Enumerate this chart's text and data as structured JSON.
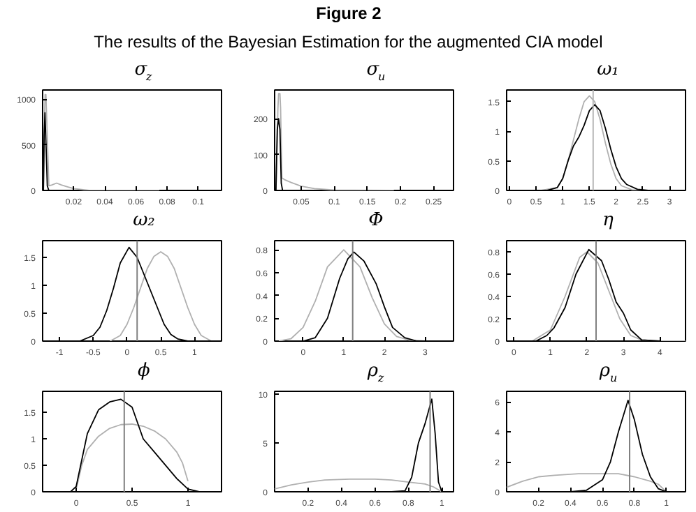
{
  "chart_data": [
    {
      "type": "other",
      "title": "Figure 2",
      "subtitle": "The results of the Bayesian Estimation for the augmented CIA model"
    },
    {
      "type": "line",
      "title": "σ$_{z}$",
      "xlim": [
        0,
        0.115
      ],
      "ylim": [
        0,
        1100
      ],
      "xticks": [
        0.02,
        0.04,
        0.06,
        0.08,
        0.1
      ],
      "yticks": [
        0,
        500,
        1000
      ],
      "grid": false,
      "series": [
        {
          "color": "#b0b0b0",
          "x": [
            0.0005,
            0.0012,
            0.0016,
            0.0021,
            0.0026,
            0.004,
            0.006,
            0.009,
            0.012,
            0.016,
            0.02,
            0.025,
            0.03,
            0.04,
            0.075
          ],
          "values": [
            0,
            800,
            1050,
            1050,
            800,
            50,
            60,
            80,
            60,
            40,
            20,
            10,
            0,
            0,
            0
          ]
        },
        {
          "color": "#000000",
          "x": [
            0.0005,
            0.001,
            0.0015,
            0.002,
            0.003,
            0.004,
            0.01
          ],
          "values": [
            0,
            600,
            850,
            600,
            50,
            0,
            0
          ]
        }
      ]
    },
    {
      "type": "line",
      "title": "σ$_{u}$",
      "xlim": [
        0.01,
        0.28
      ],
      "ylim": [
        0,
        280
      ],
      "xticks": [
        0.05,
        0.1,
        0.15,
        0.2,
        0.25
      ],
      "yticks": [
        0,
        100,
        200
      ],
      "grid": false,
      "series": [
        {
          "color": "#b0b0b0",
          "x": [
            0.012,
            0.015,
            0.016,
            0.018,
            0.019,
            0.021,
            0.025,
            0.035,
            0.05,
            0.07,
            0.1,
            0.19
          ],
          "values": [
            0,
            230,
            270,
            270,
            230,
            35,
            30,
            22,
            12,
            5,
            1,
            0
          ]
        },
        {
          "color": "#000000",
          "x": [
            0.012,
            0.014,
            0.016,
            0.018,
            0.02,
            0.022,
            0.03
          ],
          "values": [
            0,
            170,
            200,
            170,
            20,
            0,
            0
          ]
        }
      ]
    },
    {
      "type": "line",
      "title": "ω₁",
      "xlim": [
        -0.05,
        3.3
      ],
      "ylim": [
        0,
        1.7
      ],
      "xticks": [
        0,
        0.5,
        1,
        1.5,
        2,
        2.5,
        3
      ],
      "yticks": [
        0,
        0.5,
        1,
        1.5
      ],
      "grid": false,
      "ref_lines": [
        {
          "axis": "x",
          "value": 1.57,
          "color": "#b8b8b8"
        }
      ],
      "series": [
        {
          "color": "#b0b0b0",
          "x": [
            0,
            0.6,
            0.9,
            1.0,
            1.1,
            1.2,
            1.3,
            1.4,
            1.5,
            1.6,
            1.7,
            1.8,
            1.9,
            2.0,
            2.1,
            2.3,
            2.5,
            3.3
          ],
          "values": [
            0,
            0,
            0.05,
            0.2,
            0.5,
            0.85,
            1.2,
            1.5,
            1.6,
            1.5,
            1.2,
            0.8,
            0.45,
            0.2,
            0.08,
            0.01,
            0,
            0
          ]
        },
        {
          "color": "#000000",
          "x": [
            0,
            0.7,
            0.9,
            1.0,
            1.1,
            1.2,
            1.3,
            1.4,
            1.5,
            1.6,
            1.7,
            1.8,
            1.9,
            2.0,
            2.1,
            2.2,
            2.4,
            2.6,
            3.3
          ],
          "values": [
            0,
            0,
            0.05,
            0.2,
            0.5,
            0.75,
            0.9,
            1.1,
            1.35,
            1.45,
            1.35,
            1.05,
            0.7,
            0.4,
            0.2,
            0.1,
            0.02,
            0,
            0
          ]
        }
      ]
    },
    {
      "type": "line",
      "title": "ω₂",
      "xlim": [
        -1.25,
        1.4
      ],
      "ylim": [
        0,
        1.8
      ],
      "xticks": [
        -1,
        -0.5,
        0,
        0.5,
        1
      ],
      "yticks": [
        0,
        0.5,
        1,
        1.5
      ],
      "grid": false,
      "ref_lines": [
        {
          "axis": "x",
          "value": 0.15,
          "color": "#808080"
        }
      ],
      "series": [
        {
          "color": "#b0b0b0",
          "x": [
            -0.25,
            -0.1,
            0,
            0.1,
            0.2,
            0.3,
            0.4,
            0.5,
            0.6,
            0.7,
            0.8,
            0.9,
            1.0,
            1.1,
            1.25
          ],
          "values": [
            0,
            0.1,
            0.3,
            0.6,
            0.95,
            1.3,
            1.52,
            1.6,
            1.52,
            1.3,
            0.95,
            0.6,
            0.3,
            0.1,
            0
          ]
        },
        {
          "color": "#000000",
          "x": [
            -1.25,
            -0.7,
            -0.5,
            -0.4,
            -0.3,
            -0.2,
            -0.1,
            0.03,
            0.15,
            0.25,
            0.35,
            0.45,
            0.55,
            0.65,
            0.75,
            0.9,
            1.4
          ],
          "values": [
            0,
            0,
            0.1,
            0.25,
            0.55,
            0.95,
            1.4,
            1.68,
            1.5,
            1.2,
            0.9,
            0.6,
            0.3,
            0.12,
            0.04,
            0,
            0
          ]
        }
      ]
    },
    {
      "type": "line",
      "title": "Φ",
      "xlim": [
        -0.7,
        3.7
      ],
      "ylim": [
        0,
        0.88
      ],
      "xticks": [
        0,
        1,
        2,
        3
      ],
      "yticks": [
        0,
        0.2,
        0.4,
        0.6,
        0.8
      ],
      "grid": false,
      "ref_lines": [
        {
          "axis": "x",
          "value": 1.22,
          "color": "#808080"
        }
      ],
      "series": [
        {
          "color": "#b0b0b0",
          "x": [
            -0.6,
            -0.3,
            0,
            0.3,
            0.6,
            1.0,
            1.4,
            1.7,
            2.0,
            2.3,
            2.6,
            3.0
          ],
          "values": [
            0,
            0.02,
            0.12,
            0.35,
            0.65,
            0.8,
            0.65,
            0.38,
            0.15,
            0.04,
            0.01,
            0
          ]
        },
        {
          "color": "#000000",
          "x": [
            0,
            0.3,
            0.6,
            0.9,
            1.1,
            1.25,
            1.5,
            1.8,
            2.0,
            2.2,
            2.5,
            2.8,
            3.5
          ],
          "values": [
            0,
            0.03,
            0.2,
            0.55,
            0.72,
            0.78,
            0.7,
            0.5,
            0.3,
            0.12,
            0.03,
            0,
            0
          ]
        }
      ]
    },
    {
      "type": "line",
      "title": "η",
      "xlim": [
        -0.2,
        4.7
      ],
      "ylim": [
        0,
        0.9
      ],
      "xticks": [
        0,
        1,
        2,
        3,
        4
      ],
      "yticks": [
        0,
        0.2,
        0.4,
        0.6,
        0.8
      ],
      "grid": false,
      "ref_lines": [
        {
          "axis": "x",
          "value": 2.25,
          "color": "#808080"
        }
      ],
      "series": [
        {
          "color": "#b0b0b0",
          "x": [
            0,
            0.5,
            1,
            1.4,
            1.8,
            2.0,
            2.3,
            2.6,
            2.9,
            3.2,
            3.5,
            4,
            4.7
          ],
          "values": [
            0,
            0,
            0.1,
            0.4,
            0.75,
            0.8,
            0.7,
            0.45,
            0.2,
            0.05,
            0.01,
            0,
            0
          ]
        },
        {
          "color": "#000000",
          "x": [
            0,
            0.6,
            0.9,
            1.1,
            1.4,
            1.7,
            2.05,
            2.4,
            2.6,
            2.8,
            3.0,
            3.2,
            3.5,
            4
          ],
          "values": [
            0,
            0,
            0.05,
            0.12,
            0.3,
            0.6,
            0.82,
            0.72,
            0.55,
            0.35,
            0.25,
            0.1,
            0.01,
            0
          ]
        }
      ]
    },
    {
      "type": "line",
      "title": "ϕ",
      "xlim": [
        -0.3,
        1.3
      ],
      "ylim": [
        0,
        1.9
      ],
      "xticks": [
        0,
        0.5,
        1
      ],
      "yticks": [
        0,
        0.5,
        1,
        1.5
      ],
      "grid": false,
      "ref_lines": [
        {
          "axis": "x",
          "value": 0.43,
          "color": "#808080"
        }
      ],
      "series": [
        {
          "color": "#b0b0b0",
          "x": [
            0,
            0.05,
            0.1,
            0.2,
            0.3,
            0.4,
            0.5,
            0.6,
            0.7,
            0.8,
            0.9,
            0.95,
            1.0
          ],
          "values": [
            0.05,
            0.5,
            0.8,
            1.05,
            1.2,
            1.27,
            1.28,
            1.24,
            1.15,
            1.0,
            0.75,
            0.55,
            0.2
          ]
        },
        {
          "color": "#000000",
          "x": [
            -0.3,
            -0.05,
            0,
            0.05,
            0.1,
            0.2,
            0.3,
            0.4,
            0.5,
            0.55,
            0.6,
            0.7,
            0.8,
            0.9,
            1.0,
            1.1,
            1.3
          ],
          "values": [
            0,
            0,
            0.1,
            0.6,
            1.1,
            1.55,
            1.7,
            1.75,
            1.6,
            1.3,
            1.0,
            0.75,
            0.5,
            0.25,
            0.05,
            0,
            0
          ]
        }
      ]
    },
    {
      "type": "line",
      "title": "ρ$_{z}$",
      "xlim": [
        0,
        1.07
      ],
      "ylim": [
        0,
        10.3
      ],
      "xticks": [
        0.2,
        0.4,
        0.6,
        0.8,
        1
      ],
      "yticks": [
        0,
        5,
        10
      ],
      "grid": false,
      "ref_lines": [
        {
          "axis": "x",
          "value": 0.93,
          "color": "#808080"
        }
      ],
      "series": [
        {
          "color": "#b0b0b0",
          "x": [
            0,
            0.1,
            0.2,
            0.3,
            0.45,
            0.6,
            0.7,
            0.8,
            0.9,
            0.95,
            1.0
          ],
          "values": [
            0.3,
            0.7,
            1,
            1.2,
            1.3,
            1.3,
            1.2,
            1,
            0.8,
            0.5,
            0
          ]
        },
        {
          "color": "#000000",
          "x": [
            0.7,
            0.78,
            0.82,
            0.86,
            0.9,
            0.94,
            0.96,
            0.98,
            1.0,
            1.07
          ],
          "values": [
            0,
            0.1,
            1.5,
            5,
            7,
            9.5,
            6,
            1,
            0,
            0
          ]
        }
      ]
    },
    {
      "type": "line",
      "title": "ρ$_{u}$",
      "xlim": [
        0,
        1.12
      ],
      "ylim": [
        0,
        6.7
      ],
      "xticks": [
        0.2,
        0.4,
        0.6,
        0.8,
        1
      ],
      "yticks": [
        0,
        2,
        4,
        6
      ],
      "grid": false,
      "ref_lines": [
        {
          "axis": "x",
          "value": 0.77,
          "color": "#808080"
        }
      ],
      "series": [
        {
          "color": "#b0b0b0",
          "x": [
            0,
            0.1,
            0.2,
            0.3,
            0.45,
            0.6,
            0.7,
            0.8,
            0.9,
            0.95,
            1.0
          ],
          "values": [
            0.3,
            0.7,
            1,
            1.1,
            1.2,
            1.2,
            1.2,
            1.0,
            0.7,
            0.5,
            0
          ]
        },
        {
          "color": "#000000",
          "x": [
            0.4,
            0.5,
            0.6,
            0.65,
            0.7,
            0.76,
            0.8,
            0.85,
            0.9,
            0.95,
            1.0,
            1.12
          ],
          "values": [
            0,
            0.1,
            0.8,
            2,
            4,
            6.1,
            4.8,
            2.5,
            1,
            0.2,
            0,
            0
          ]
        }
      ]
    }
  ]
}
